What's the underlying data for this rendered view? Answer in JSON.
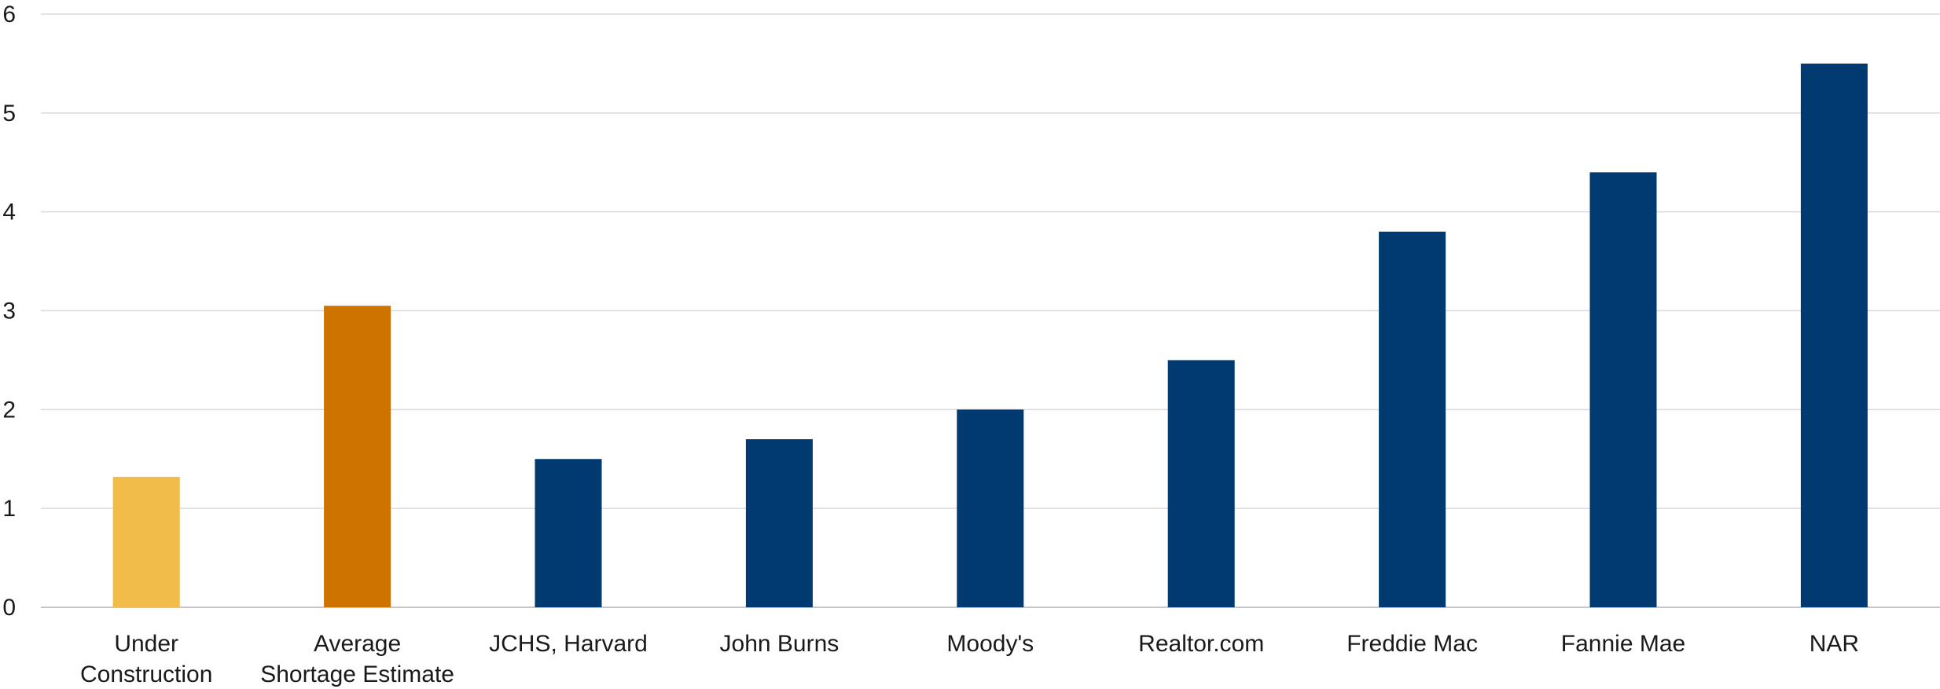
{
  "chart_data": {
    "type": "bar",
    "categories": [
      [
        "Under",
        "Construction"
      ],
      [
        "Average",
        "Shortage Estimate"
      ],
      [
        "JCHS, Harvard"
      ],
      [
        "John Burns"
      ],
      [
        "Moody's"
      ],
      [
        "Realtor.com"
      ],
      [
        "Freddie Mac"
      ],
      [
        "Fannie Mae"
      ],
      [
        "NAR"
      ]
    ],
    "values": [
      1.32,
      3.05,
      1.5,
      1.7,
      2.0,
      2.5,
      3.8,
      4.4,
      5.5
    ],
    "bar_colors": [
      "#F2BC4A",
      "#CF7300",
      "#003A70",
      "#003A70",
      "#003A70",
      "#003A70",
      "#003A70",
      "#003A70",
      "#003A70"
    ],
    "ylim": [
      0,
      6
    ],
    "yticks": [
      "0",
      "1",
      "2",
      "3",
      "4",
      "5",
      "6"
    ],
    "grid": true,
    "title": "",
    "xlabel": "",
    "ylabel": ""
  }
}
